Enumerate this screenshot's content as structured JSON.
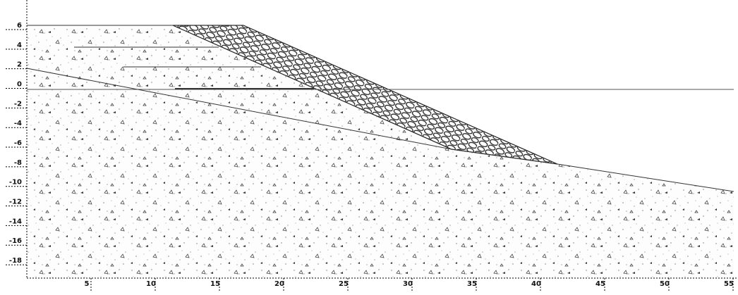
{
  "y_axis": {
    "ticks": [
      6,
      4,
      2,
      0,
      -2,
      -4,
      -6,
      -8,
      -10,
      -12,
      -14,
      -16,
      -18
    ]
  },
  "x_axis": {
    "ticks": [
      5,
      10,
      15,
      20,
      25,
      30,
      35,
      40,
      45,
      50,
      55
    ]
  }
}
